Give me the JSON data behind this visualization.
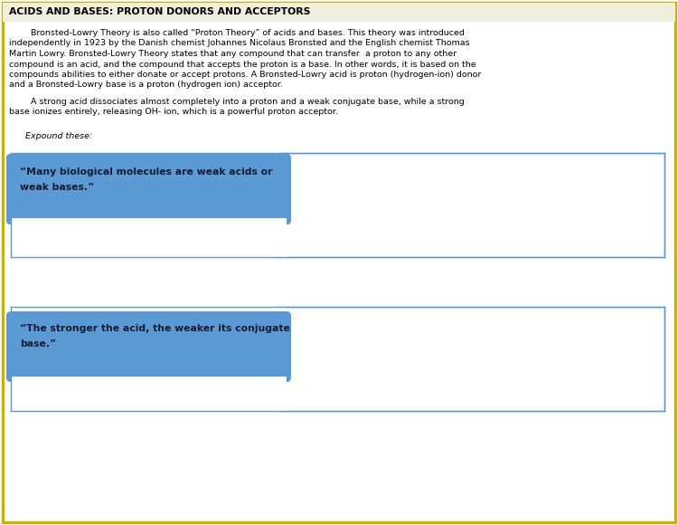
{
  "title": "ACIDS AND BASES: PROTON DONORS AND ACCEPTORS",
  "para1_lines": [
    "        Bronsted-Lowry Theory is also called “Proton Theory” of acids and bases. This theory was introduced",
    "independently in 1923 by the Danish chemist Johannes Nicolaus Bronsted and the English chemist Thomas",
    "Martin Lowry. Bronsted-Lowry Theory states that any compound that can transfer  a proton to any other",
    "compound is an acid, and the compound that accepts the proton is a base. In other words, it is based on the",
    "compounds abilities to either donate or accept protons. A Bronsted-Lowry acid is proton (hydrogen-ion) donor",
    "and a Bronsted-Lowry base is a proton (hydrogen ion) acceptor."
  ],
  "para2_lines": [
    "        A strong acid dissociates almost completely into a proton and a weak conjugate base, while a strong",
    "base ionizes entirely, releasing OH- ion, which is a powerful proton acceptor."
  ],
  "expound_label": "Expound these:",
  "quote1_line1": "“Many biological molecules are weak acids or",
  "quote1_line2": "weak bases.”",
  "quote2_line1": "“The stronger the acid, the weaker its conjugate",
  "quote2_line2": "base.”",
  "bg_color": "#ffffff",
  "outer_border_color": "#c8b400",
  "title_bg_color": "#f0eedc",
  "box_border_color": "#5b9bd5",
  "box_bg_color": "#ffffff",
  "quote_bg_color": "#5b9bd5",
  "quote_text_color": "#1a1a2e",
  "title_color": "#000000",
  "body_color": "#000000",
  "title_fontsize": 7.8,
  "body_fontsize": 6.8,
  "quote_fontsize": 7.8
}
